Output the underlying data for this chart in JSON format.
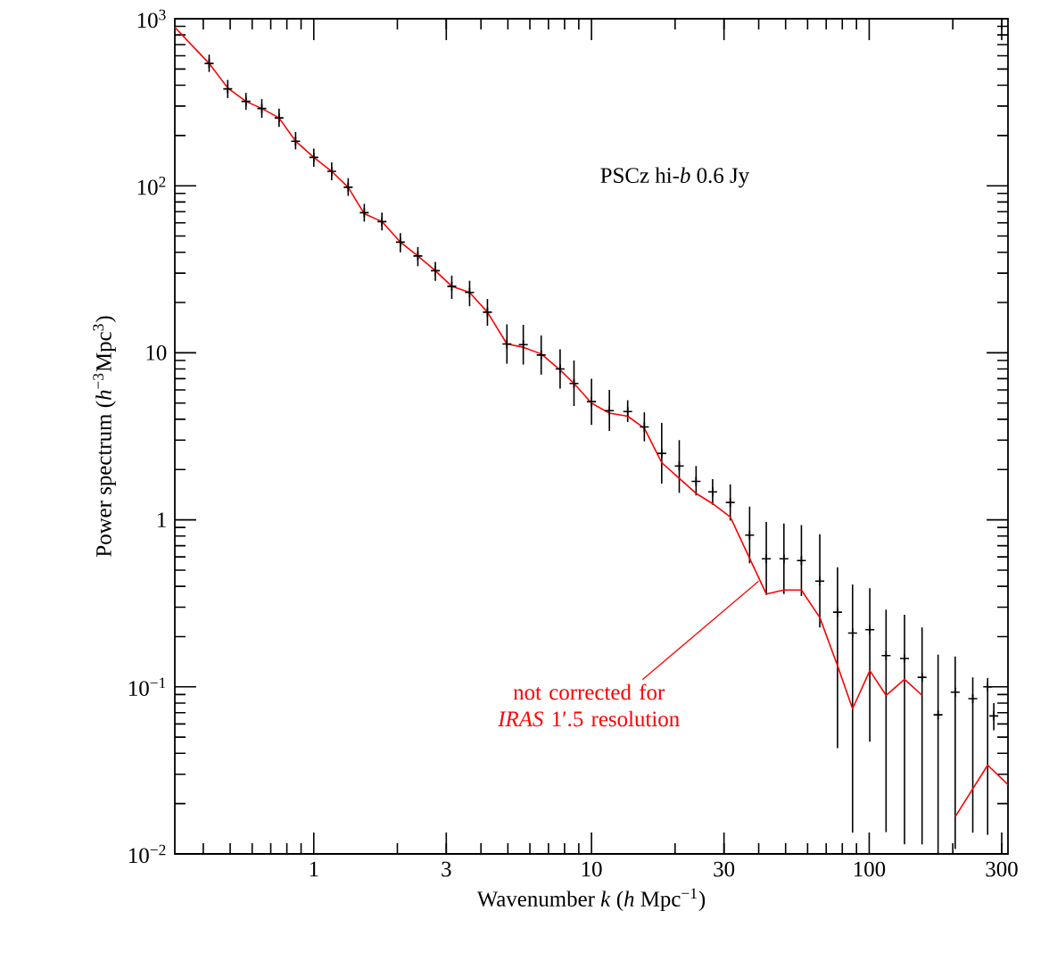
{
  "chart_data": {
    "type": "scatter",
    "xlabel": "Wavenumber *k*  (*h* Mpc$^{−1}$)",
    "ylabel": "Power spectrum  (*h*$^{−3}$Mpc$^{3}$)",
    "log": "xy",
    "xlim": [
      0.316,
      316
    ],
    "ylim": [
      0.01,
      1000
    ],
    "xticks": [
      1,
      3,
      10,
      30,
      100,
      300
    ],
    "yticks": [
      {
        "value": 0.01,
        "label": "10$^{−2}$"
      },
      {
        "value": 0.1,
        "label": "10$^{−1}$"
      },
      1,
      10,
      {
        "value": 100,
        "label": "10$^{2}$"
      },
      {
        "value": 1000,
        "label": "10$^{3}$"
      }
    ],
    "annotations": [
      "PSCz hi-*b* 0.6 Jy",
      {
        "text": "not corrected for *IRAS* 1′.5 resolution",
        "x": 40,
        "y": 0.43
      }
    ],
    "series": [
      {
        "color": "#000000",
        "marker": "cross",
        "x": [
          0.42,
          0.49,
          0.57,
          0.65,
          0.75,
          0.86,
          1.0,
          1.16,
          1.33,
          1.52,
          1.76,
          2.05,
          2.37,
          2.74,
          3.14,
          3.64,
          4.22,
          4.96,
          5.68,
          6.59,
          7.71,
          8.65,
          10.0,
          11.6,
          13.5,
          15.5,
          17.9,
          20.7,
          23.8,
          27.3,
          31.6,
          37.1,
          42.6,
          49.3,
          57.0,
          66.4,
          76.9,
          87.1,
          100.5,
          115,
          134,
          155,
          177,
          204,
          236,
          267,
          281
        ],
        "values": [
          540,
          380,
          320,
          290,
          255,
          185,
          148,
          122,
          98,
          69,
          61,
          46,
          38,
          31,
          25,
          23,
          17.5,
          11.3,
          11.2,
          9.7,
          8.0,
          6.55,
          5.1,
          4.5,
          4.45,
          3.6,
          2.5,
          2.1,
          1.7,
          1.47,
          1.27,
          0.81,
          0.585,
          0.585,
          0.57,
          0.43,
          0.28,
          0.21,
          0.22,
          0.154,
          0.148,
          0.114,
          0.068,
          0.093,
          0.085,
          0.1,
          0.067
        ],
        "errors": [
          [
            480,
            610
          ],
          [
            335,
            430
          ],
          [
            285,
            360
          ],
          [
            255,
            330
          ],
          [
            225,
            290
          ],
          [
            165,
            210
          ],
          [
            130,
            167
          ],
          [
            108,
            138
          ],
          [
            87,
            111
          ],
          [
            61,
            78
          ],
          [
            54,
            69
          ],
          [
            40,
            52
          ],
          [
            33,
            43
          ],
          [
            27,
            35
          ],
          [
            21,
            29
          ],
          [
            19,
            27
          ],
          [
            14.5,
            21
          ],
          [
            8.6,
            14.8
          ],
          [
            8.5,
            14.7
          ],
          [
            7.4,
            12.7
          ],
          [
            6.1,
            10.5
          ],
          [
            4.8,
            9.0
          ],
          [
            3.7,
            7.0
          ],
          [
            3.4,
            6.0
          ],
          [
            3.85,
            5.2
          ],
          [
            2.95,
            4.4
          ],
          [
            1.65,
            3.8
          ],
          [
            1.45,
            3.0
          ],
          [
            1.4,
            2.1
          ],
          [
            1.23,
            1.75
          ],
          [
            0.99,
            1.63
          ],
          [
            0.55,
            1.2
          ],
          [
            0.355,
            0.97
          ],
          [
            0.36,
            0.95
          ],
          [
            0.35,
            0.93
          ],
          [
            0.227,
            0.82
          ],
          [
            0.043,
            0.52
          ],
          [
            0.0134,
            0.41
          ],
          [
            0.047,
            0.39
          ],
          [
            0.0135,
            0.29
          ],
          [
            0.0114,
            0.27
          ],
          [
            0.0114,
            0.227
          ],
          [
            0.01,
            0.156
          ],
          [
            0.0107,
            0.152
          ],
          [
            0.0134,
            0.114
          ],
          [
            0.013,
            0.113
          ],
          [
            0.055,
            0.08
          ]
        ]
      },
      {
        "type": "line",
        "color": "#ff0000",
        "marker": "none",
        "line_style": "solid",
        "x": [
          0.316,
          0.42,
          0.49,
          0.57,
          0.65,
          0.75,
          0.86,
          1.0,
          1.16,
          1.33,
          1.52,
          1.76,
          2.05,
          2.37,
          2.74,
          3.14,
          3.64,
          4.22,
          4.96,
          5.68,
          6.59,
          7.71,
          8.65,
          10.0,
          11.6,
          13.5,
          15.5,
          17.9,
          20.7,
          23.8,
          27.3,
          31.6,
          42.6,
          49.3,
          57.0,
          66.4,
          76.9,
          87.1,
          100.5,
          115,
          134,
          155,
          177,
          204,
          267,
          316
        ],
        "values": [
          890,
          540,
          385,
          320,
          290,
          255,
          185,
          148,
          122,
          98,
          68,
          61,
          46,
          38,
          31,
          25,
          23,
          17.5,
          11.3,
          10.8,
          9.85,
          7.9,
          6.55,
          5.0,
          4.35,
          4.17,
          3.54,
          2.2,
          1.77,
          1.44,
          1.25,
          1.04,
          0.36,
          0.38,
          0.38,
          0.26,
          0.134,
          0.074,
          0.125,
          0.089,
          0.111,
          0.089,
          null,
          0.0167,
          0.034,
          0.026
        ]
      }
    ]
  }
}
